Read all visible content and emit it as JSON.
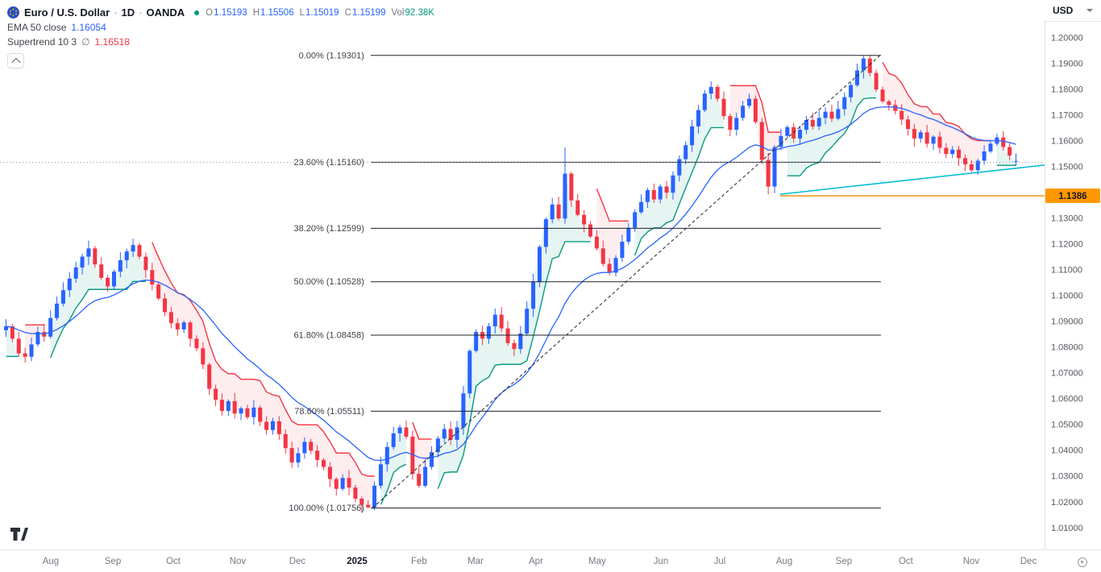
{
  "header": {
    "symbol": "Euro / U.S. Dollar",
    "separator": "·",
    "timeframe": "1D",
    "exchange": "OANDA",
    "ohlc": {
      "o_label": "O",
      "o": "1.15193",
      "h_label": "H",
      "h": "1.15506",
      "l_label": "L",
      "l": "1.15019",
      "c_label": "C",
      "c": "1.15199",
      "vol_label": "Vol",
      "vol": "92.38K"
    },
    "indicators": [
      {
        "name": "EMA 50 close",
        "value": "1.16054"
      },
      {
        "name": "Supertrend 10 3",
        "prefix": "∅",
        "value": "1.16518"
      }
    ]
  },
  "axis": {
    "currency": "USD",
    "price_labels": [
      "1.20000",
      "1.19000",
      "1.18000",
      "1.17000",
      "1.16000",
      "1.15000",
      "1.14000",
      "1.13000",
      "1.12000",
      "1.11000",
      "1.10000",
      "1.09000",
      "1.08000",
      "1.07000",
      "1.06000",
      "1.05000",
      "1.04000",
      "1.03000",
      "1.02000",
      "1.01000"
    ],
    "price_tag": {
      "value": "1.1386"
    },
    "time_labels": [
      {
        "label": "Aug",
        "x": 0.0461
      },
      {
        "label": "Sep",
        "x": 0.1025
      },
      {
        "label": "Oct",
        "x": 0.1574
      },
      {
        "label": "Nov",
        "x": 0.2159
      },
      {
        "label": "Dec",
        "x": 0.2701
      },
      {
        "label": "2025",
        "x": 0.3243,
        "bold": true
      },
      {
        "label": "Feb",
        "x": 0.3806
      },
      {
        "label": "Mar",
        "x": 0.4319
      },
      {
        "label": "Apr",
        "x": 0.4868
      },
      {
        "label": "May",
        "x": 0.5424
      },
      {
        "label": "Jun",
        "x": 0.6003
      },
      {
        "label": "Jul",
        "x": 0.6537
      },
      {
        "label": "Aug",
        "x": 0.7123
      },
      {
        "label": "Sep",
        "x": 0.7664
      },
      {
        "label": "Oct",
        "x": 0.8228
      },
      {
        "label": "Nov",
        "x": 0.8821
      },
      {
        "label": "Dec",
        "x": 0.9341
      }
    ]
  },
  "chart_data": {
    "type": "candlestick",
    "title": "EUR/USD Daily candlestick chart with EMA 50, Supertrend and Fibonacci retracement",
    "symbol": "EUR/USD",
    "timeframe": "1D",
    "exchange": "OANDA",
    "price_range_visible": [
      1.0015,
      1.2145
    ],
    "closes": [
      1.088,
      1.0832,
      1.0775,
      1.0762,
      1.081,
      1.0858,
      1.084,
      1.0912,
      1.0968,
      1.102,
      1.1065,
      1.1108,
      1.115,
      1.1182,
      1.112,
      1.1068,
      1.1035,
      1.1092,
      1.1136,
      1.117,
      1.1195,
      1.115,
      1.1098,
      1.1042,
      1.0988,
      1.0935,
      1.0892,
      1.0868,
      1.0895,
      1.0832,
      1.0795,
      1.0732,
      1.0638,
      1.0595,
      1.0552,
      1.059,
      1.0542,
      1.0562,
      1.0528,
      1.0565,
      1.051,
      1.0478,
      1.0512,
      1.0462,
      1.0408,
      1.0352,
      1.0388,
      1.0432,
      1.0398,
      1.0362,
      1.0335,
      1.0288,
      1.025,
      1.0292,
      1.0255,
      1.0212,
      1.0188,
      1.0178,
      1.0262,
      1.0345,
      1.0412,
      1.0465,
      1.0488,
      1.0452,
      1.0308,
      1.0262,
      1.0335,
      1.0392,
      1.0445,
      1.0482,
      1.044,
      1.0488,
      1.062,
      1.0785,
      1.0858,
      1.0832,
      1.088,
      1.0925,
      1.0872,
      1.0815,
      1.0792,
      1.0852,
      1.0948,
      1.1052,
      1.1188,
      1.1295,
      1.1352,
      1.1298,
      1.1472,
      1.1368,
      1.1312,
      1.1275,
      1.1228,
      1.1182,
      1.1122,
      1.1088,
      1.1145,
      1.1208,
      1.1262,
      1.1322,
      1.1362,
      1.1408,
      1.1372,
      1.1422,
      1.1398,
      1.1465,
      1.1528,
      1.1582,
      1.1655,
      1.1718,
      1.1782,
      1.1808,
      1.1762,
      1.1695,
      1.1642,
      1.1688,
      1.1735,
      1.1762,
      1.1672,
      1.1525,
      1.1422,
      1.1575,
      1.1618,
      1.1652,
      1.1608,
      1.1642,
      1.168,
      1.1655,
      1.1688,
      1.1712,
      1.1685,
      1.1722,
      1.1768,
      1.1815,
      1.1872,
      1.1918,
      1.1862,
      1.1798,
      1.1752,
      1.1738,
      1.1715,
      1.1682,
      1.1645,
      1.1608,
      1.1632,
      1.1588,
      1.1615,
      1.1572,
      1.1548,
      1.1565,
      1.1532,
      1.1508,
      1.1485,
      1.1522,
      1.1558,
      1.1588,
      1.1612,
      1.1575,
      1.1542,
      1.15199
    ],
    "wick_overrides": {
      "57": {
        "low": 1.01756
      },
      "88": {
        "high": 1.1573
      },
      "111": {
        "high": 1.183
      },
      "120": {
        "low": 1.1392
      },
      "135": {
        "high": 1.19301
      }
    },
    "last": {
      "open": 1.15193,
      "high": 1.15506,
      "low": 1.15019,
      "close": 1.15199,
      "volume": "92.38K"
    },
    "indicators": {
      "ema": {
        "period": 50,
        "last": 1.16054,
        "render_period": 20
      },
      "supertrend": {
        "period": 10,
        "multiplier": 3,
        "last": 1.16518,
        "render_period": 10,
        "render_mult": 1.6
      }
    },
    "fib": {
      "x_start_frac": 0.3367,
      "x_end_frac": 0.8001,
      "levels": [
        {
          "label": "0.00% (1.19301)",
          "price": 1.19301
        },
        {
          "label": "23.60% (1.15160)",
          "price": 1.1516
        },
        {
          "label": "38.20% (1.12599)",
          "price": 1.12599
        },
        {
          "label": "50.00% (1.10528)",
          "price": 1.10528
        },
        {
          "label": "61.80% (1.08458)",
          "price": 1.08458
        },
        {
          "label": "78.60% (1.05511)",
          "price": 1.05511
        },
        {
          "label": "100.00% (1.01756)",
          "price": 1.01756
        }
      ]
    },
    "trendline_dashed": {
      "x1_frac": 0.3382,
      "p1": 1.01756,
      "x2_frac": 0.7993,
      "p2": 1.19301
    },
    "support_line_cyan": {
      "x1_frac": 0.7086,
      "p1": 1.1392,
      "x2_frac": 0.9488,
      "p2": 1.1505
    },
    "horizontal_ray": {
      "price": 1.1386,
      "x_start_frac": 0.7086
    },
    "dotted_price_line": {
      "price": 1.1516
    },
    "colors": {
      "up": "#2962ff",
      "down": "#f23645",
      "ema": "#2962ff",
      "st_up": "#089981",
      "st_down": "#f23645",
      "st_up_fill": "rgba(8,153,129,0.10)",
      "st_down_fill": "rgba(242,54,69,0.09)",
      "trend_dashed": "#22252c",
      "support": "#00bcd4",
      "ray": "#f58c00",
      "tag_bg": "#ff9800",
      "tag_text": "#17181c",
      "dotted": "#8a8e98",
      "fib_line": "#1e222d",
      "fib_text": "#3c3f46",
      "axis_border": "#e0e3eb",
      "axis_text": "#555860",
      "time_text": "#787b86",
      "time_text_bold": "#131722"
    }
  }
}
